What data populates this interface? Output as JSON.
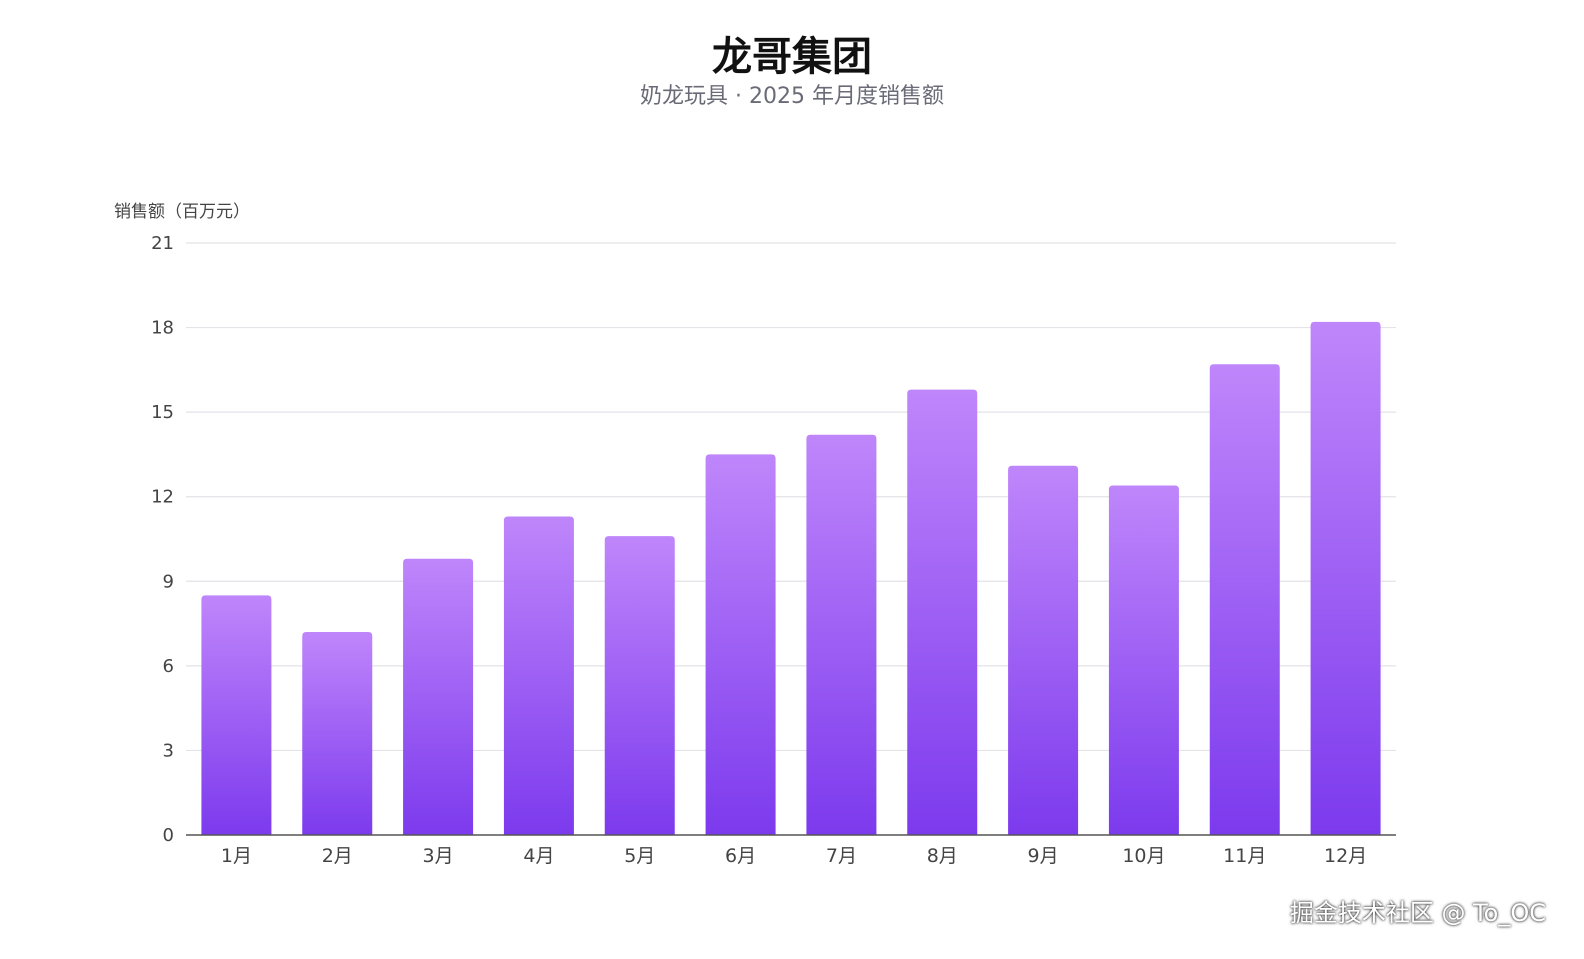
{
  "chart_data": {
    "type": "bar",
    "title": "龙哥集团",
    "subtitle": "奶龙玩具 · 2025 年月度销售额",
    "ylabel": "销售额（百万元）",
    "xlabel": "",
    "categories": [
      "1月",
      "2月",
      "3月",
      "4月",
      "5月",
      "6月",
      "7月",
      "8月",
      "9月",
      "10月",
      "11月",
      "12月"
    ],
    "values": [
      8.5,
      7.2,
      9.8,
      11.3,
      10.6,
      13.5,
      14.2,
      15.8,
      13.1,
      12.4,
      16.7,
      18.2
    ],
    "ylim": [
      0,
      21
    ],
    "yticks": [
      "0",
      "3",
      "6",
      "9",
      "12",
      "15",
      "18",
      "21"
    ],
    "grid": true,
    "colors": {
      "bar_top": "#bf86fb",
      "bar_bottom": "#7c3aed",
      "grid": "#e3e3e8",
      "axis": "#555555",
      "tick_text": "#444444"
    }
  },
  "watermark": "掘金技术社区 @ To_OC"
}
